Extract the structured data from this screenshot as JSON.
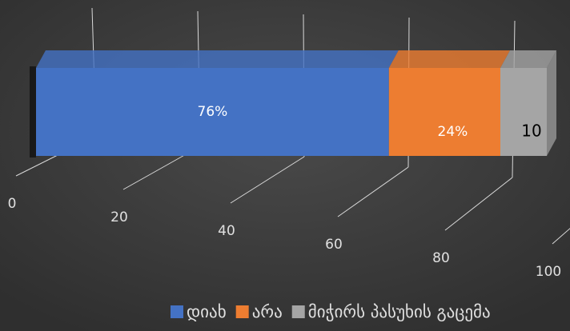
{
  "chart_data": {
    "type": "bar3d_stacked_horizontal",
    "series": [
      {
        "name": "დიახ",
        "color": "#4472c4",
        "values": [
          76
        ],
        "value_labels": [
          "76%"
        ]
      },
      {
        "name": "არა",
        "color": "#ed7d31",
        "values": [
          24
        ],
        "value_labels": [
          "24%"
        ]
      },
      {
        "name": "მიჭირს პასუხის გაცემა",
        "color": "#a5a5a5",
        "values": [
          10
        ]
      }
    ],
    "xlim": [
      0,
      110
    ],
    "xticks": [
      0,
      20,
      40,
      60,
      80,
      100
    ],
    "grid": true,
    "legend": "bottom"
  }
}
